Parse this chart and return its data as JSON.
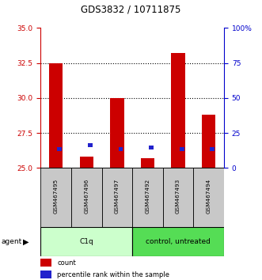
{
  "title": "GDS3832 / 10711875",
  "samples": [
    "GSM467495",
    "GSM467496",
    "GSM467497",
    "GSM467492",
    "GSM467493",
    "GSM467494"
  ],
  "red_values": [
    32.5,
    25.8,
    30.0,
    25.7,
    33.2,
    28.8
  ],
  "blue_values": [
    26.2,
    26.5,
    26.2,
    26.3,
    26.2,
    26.2
  ],
  "ylim_left": [
    25,
    35
  ],
  "ylim_right": [
    0,
    100
  ],
  "left_ticks": [
    25,
    27.5,
    30,
    32.5,
    35
  ],
  "right_ticks": [
    0,
    25,
    50,
    75,
    100
  ],
  "right_tick_labels": [
    "0",
    "25",
    "50",
    "75",
    "100%"
  ],
  "groups": [
    {
      "label": "C1q",
      "indices": [
        0,
        1,
        2
      ],
      "light_color": "#ccffcc",
      "dark_color": "#aaffaa"
    },
    {
      "label": "control, untreated",
      "indices": [
        3,
        4,
        5
      ],
      "light_color": "#44dd44",
      "dark_color": "#22cc22"
    }
  ],
  "agent_label": "agent",
  "red_color": "#cc0000",
  "blue_color": "#2222cc",
  "left_axis_color": "#cc0000",
  "right_axis_color": "#0000cc",
  "background_color": "#ffffff",
  "bar_width": 0.45,
  "bar_bottom": 25,
  "label_bg": "#c8c8c8",
  "grid_lines": [
    27.5,
    30.0,
    32.5
  ]
}
